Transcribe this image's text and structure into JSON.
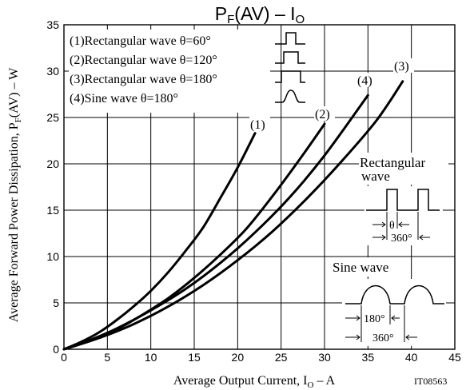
{
  "chart_data": {
    "type": "line",
    "title_main": "P",
    "title_sub1": "F",
    "title_mid": "(AV)  –  I",
    "title_sub2": "O",
    "ylabel_main": "Average Forward Power Dissipation, P",
    "ylabel_sub": "F",
    "ylabel_tail": "(AV)  –  W",
    "xlabel_main": "Average Output Current, I",
    "xlabel_sub": "O",
    "xlabel_tail": "  –  A",
    "figure_code": "IT08563",
    "xlim": [
      0,
      45
    ],
    "ylim": [
      0,
      35
    ],
    "x_ticks": [
      "0",
      "5",
      "10",
      "15",
      "20",
      "25",
      "30",
      "35",
      "40",
      "45"
    ],
    "y_ticks": [
      "0",
      "5",
      "10",
      "15",
      "20",
      "25",
      "30",
      "35"
    ],
    "grid": true,
    "legend": [
      "(1)Rectangular wave θ=60°",
      "(2)Rectangular wave θ=120°",
      "(3)Rectangular wave θ=180°",
      "(4)Sine wave θ=180°"
    ],
    "series": [
      {
        "name": "(1)",
        "x": [
          0,
          2,
          4,
          6,
          8,
          10,
          12,
          14,
          16,
          18,
          20,
          22
        ],
        "y": [
          0,
          0.8,
          1.8,
          3.1,
          4.6,
          6.3,
          8.3,
          10.6,
          13.1,
          16.3,
          19.6,
          23.3
        ]
      },
      {
        "name": "(2)",
        "x": [
          0,
          3,
          6,
          9,
          12,
          15,
          18,
          21,
          24,
          27,
          30
        ],
        "y": [
          0,
          0.9,
          2.1,
          3.7,
          5.5,
          7.7,
          10.2,
          13,
          16.5,
          20.3,
          24.3
        ]
      },
      {
        "name": "(3)",
        "x": [
          0,
          4,
          8,
          12,
          16,
          20,
          24,
          28,
          32,
          36,
          39
        ],
        "y": [
          0,
          1.2,
          2.7,
          4.6,
          6.9,
          9.6,
          12.7,
          16.3,
          20.3,
          24.7,
          28.9
        ]
      },
      {
        "name": "(4)",
        "x": [
          0,
          3,
          6,
          10,
          14,
          18,
          22,
          26,
          30,
          35
        ],
        "y": [
          0,
          1,
          2.2,
          4.2,
          6.5,
          9.3,
          12.6,
          16.4,
          20.9,
          27.4
        ]
      }
    ],
    "annotations": {
      "rect_wave_line1": "Rectangular",
      "rect_wave_line2": "wave",
      "theta": "θ",
      "deg360": "360°",
      "sine_wave": "Sine wave",
      "deg180": "180°"
    }
  }
}
